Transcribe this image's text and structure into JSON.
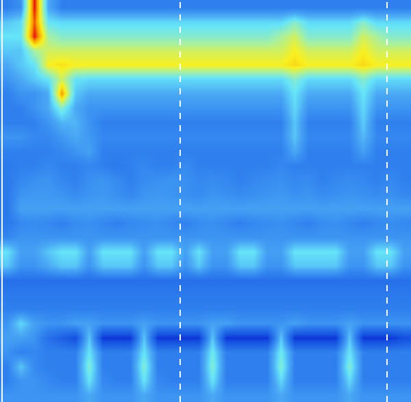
{
  "chart_data": {
    "type": "heatmap",
    "x": [
      0,
      1,
      2,
      3,
      4,
      5,
      6,
      7,
      8,
      9,
      10,
      11,
      12,
      13,
      14,
      15,
      16,
      17,
      18,
      19,
      20,
      21,
      22,
      23,
      24,
      25,
      26,
      27,
      28,
      29
    ],
    "y": [
      0,
      1,
      2,
      3,
      4,
      5,
      6,
      7,
      8,
      9,
      10,
      11,
      12,
      13,
      14,
      15,
      16,
      17,
      18,
      19,
      20,
      21,
      22,
      23,
      24,
      25,
      26,
      27
    ],
    "xlim": [
      -0.5,
      29.5
    ],
    "ylim": [
      27.5,
      -0.5
    ],
    "zlim": [
      0,
      10
    ],
    "tick_labels": false,
    "grid": false,
    "vlines": [
      {
        "x": -0.35,
        "line_style": "solid"
      },
      {
        "x": 12.65,
        "line_style": "dashed"
      },
      {
        "x": 27.75,
        "line_style": "dashed"
      }
    ],
    "cells": [
      [
        3,
        3.4,
        9,
        4,
        3,
        3,
        3,
        3,
        3,
        3,
        3,
        3,
        3,
        3,
        3,
        3,
        3,
        3,
        3,
        3,
        3,
        3,
        3,
        3,
        3,
        3,
        3,
        3,
        3,
        3
      ],
      [
        4.5,
        4.8,
        8.5,
        5,
        4.8,
        4.8,
        4.8,
        4.8,
        4.8,
        4.8,
        4.8,
        4.8,
        4.8,
        4.8,
        4.8,
        4.8,
        4.8,
        4.8,
        4.8,
        4.8,
        4.8,
        5.5,
        4.8,
        4.8,
        4.8,
        4.8,
        5.5,
        4.8,
        4.8,
        4.8
      ],
      [
        5,
        5,
        9,
        6,
        5.5,
        5.5,
        5.5,
        5.5,
        5.5,
        5.5,
        5.5,
        5.5,
        5.5,
        5.5,
        5.5,
        5.5,
        5.5,
        5.5,
        5.5,
        5.5,
        6,
        6.5,
        5.5,
        5.5,
        5.5,
        5.5,
        6.5,
        6,
        5.5,
        5.5
      ],
      [
        4.5,
        4.5,
        6,
        6.5,
        6.5,
        6.5,
        6.5,
        6.5,
        6.5,
        6.5,
        6.5,
        6.5,
        6.5,
        6.5,
        6.5,
        6.5,
        6.5,
        6.5,
        6.5,
        6.5,
        6.5,
        7,
        6.5,
        6.5,
        6.5,
        6.5,
        7,
        6.5,
        6.5,
        6.5
      ],
      [
        4,
        4.5,
        5,
        7,
        7.2,
        7,
        7,
        7,
        7,
        7,
        7,
        7,
        7,
        7,
        7,
        7,
        7,
        7,
        7,
        7,
        7,
        7.3,
        7,
        7,
        7,
        7,
        7.3,
        7,
        7,
        7
      ],
      [
        3.5,
        4,
        4.5,
        5,
        6.5,
        5,
        4.8,
        4.8,
        4.8,
        4.8,
        4.8,
        4.8,
        4.8,
        4.8,
        4.8,
        4.8,
        4.8,
        4.8,
        4.8,
        4.8,
        4.8,
        5.5,
        4.8,
        4.8,
        4.8,
        4.8,
        5.5,
        4.8,
        4.8,
        4.8
      ],
      [
        3,
        3.5,
        3.5,
        4,
        8,
        4.5,
        4,
        4,
        4,
        4,
        4,
        4,
        4,
        4,
        4,
        4,
        4,
        4,
        4,
        4,
        4,
        5,
        4,
        4,
        4,
        4,
        5,
        4,
        4,
        4
      ],
      [
        3,
        3,
        3.5,
        4,
        5.5,
        4,
        3.5,
        3.5,
        3.5,
        3.5,
        3.5,
        3.5,
        3.5,
        3.5,
        3.5,
        3.5,
        3.5,
        3.5,
        3.5,
        3.5,
        3.5,
        4.8,
        3.5,
        3.5,
        3.5,
        3.5,
        4.8,
        3.5,
        3.5,
        3.5
      ],
      [
        3,
        3,
        3,
        3.5,
        4.2,
        4.2,
        3.5,
        3,
        3,
        3,
        3,
        3,
        3,
        3,
        3,
        3,
        3,
        3,
        3,
        3,
        3,
        4.5,
        3,
        3,
        3,
        3,
        4.6,
        3,
        3,
        3
      ],
      [
        3.5,
        3.5,
        3.2,
        3.2,
        3.6,
        4,
        3.6,
        3.2,
        3.2,
        3.2,
        3.2,
        3.2,
        3.2,
        3.2,
        3.2,
        3.2,
        3.2,
        3.2,
        3.2,
        3.2,
        3.2,
        4.5,
        3.2,
        3.2,
        3.2,
        3.2,
        4.3,
        3.2,
        3.2,
        3.2
      ],
      [
        3,
        3,
        3,
        3,
        3.2,
        3.5,
        3.8,
        3,
        3,
        3,
        3,
        3,
        3,
        3,
        3,
        3,
        3,
        3,
        3,
        3,
        3,
        4,
        3,
        3,
        3,
        3,
        3.8,
        3,
        3,
        3
      ],
      [
        2.8,
        3,
        3,
        3.2,
        3,
        3,
        3.2,
        3,
        2.8,
        3,
        3.2,
        3,
        3,
        3.3,
        3,
        3,
        3,
        3,
        3,
        3,
        3.2,
        3,
        3,
        3,
        3,
        3,
        3,
        3,
        3,
        3
      ],
      [
        2.8,
        3.2,
        3.4,
        3.5,
        3.2,
        3,
        3.4,
        3.5,
        3.3,
        3,
        3.3,
        3.4,
        3.5,
        3.4,
        3.2,
        3.3,
        3.2,
        3,
        3.2,
        3.3,
        3.4,
        3.2,
        3.3,
        3,
        3.2,
        3.3,
        3.2,
        3,
        3.2,
        3
      ],
      [
        2.8,
        3.5,
        3.6,
        3.6,
        3.5,
        3.3,
        3.5,
        3.6,
        3.4,
        3.2,
        3.5,
        3.6,
        3.5,
        3.4,
        3.3,
        3.5,
        3.4,
        3.3,
        3.4,
        3.5,
        3.6,
        3.4,
        3.5,
        3.3,
        3.4,
        3.5,
        3.4,
        3.3,
        3.4,
        3.2
      ],
      [
        2.8,
        3.8,
        3.8,
        3.8,
        3.8,
        3.8,
        3.8,
        3.8,
        3.8,
        3.8,
        3.8,
        3.8,
        3.8,
        3.8,
        3.8,
        3.8,
        3.8,
        3.8,
        3.8,
        3.8,
        3.8,
        3.8,
        3.8,
        3.8,
        3.8,
        3.8,
        3.8,
        3.8,
        3.8,
        3.8
      ],
      [
        2.8,
        3.2,
        3.3,
        3.2,
        3,
        3.3,
        3.4,
        3.2,
        3,
        3.2,
        3.3,
        3.4,
        3.2,
        3,
        3.3,
        3.4,
        3.2,
        3,
        3.2,
        3.3,
        3.4,
        3.2,
        3,
        3.3,
        3.4,
        3.2,
        3,
        3.2,
        3.3,
        3.2
      ],
      [
        3.2,
        3.5,
        3.5,
        3.5,
        3.5,
        3.5,
        3.5,
        3.5,
        3.5,
        3.5,
        3.5,
        3.5,
        3.5,
        3.5,
        3.5,
        3.5,
        3.5,
        3.5,
        3.5,
        3.5,
        3.5,
        3.5,
        3.5,
        3.5,
        3.5,
        3.5,
        3.5,
        3.5,
        3.5,
        3.5
      ],
      [
        5,
        3.8,
        3.8,
        4.5,
        5,
        5,
        3.8,
        5,
        5,
        5,
        3.8,
        5,
        5,
        3.8,
        5,
        3.8,
        3.8,
        5,
        5,
        3.8,
        3.8,
        5,
        5,
        5,
        5,
        3.8,
        3.8,
        5,
        5,
        3.8
      ],
      [
        4.5,
        3.5,
        3.5,
        4,
        4.5,
        4.5,
        3.5,
        4.5,
        4.5,
        4.5,
        3.5,
        4.5,
        4.5,
        3.5,
        4.5,
        3.5,
        3.5,
        4.5,
        4.5,
        3.5,
        3.5,
        4.5,
        4.5,
        4.5,
        4.5,
        3.5,
        3.5,
        4.5,
        4.5,
        3.5
      ],
      [
        2.5,
        2.5,
        2.5,
        2.5,
        2.5,
        2.5,
        2.5,
        2.5,
        2.5,
        2.5,
        2.5,
        2.5,
        2.5,
        2.5,
        2.5,
        2.5,
        2.5,
        2.5,
        2.5,
        2.5,
        2.5,
        2.5,
        2.5,
        2.5,
        2.5,
        2.5,
        2.5,
        2.5,
        2.5,
        2.5
      ],
      [
        2.8,
        2.8,
        2.8,
        2.8,
        2.8,
        2.8,
        2.8,
        2.8,
        2.8,
        2.8,
        2.8,
        2.8,
        2.8,
        2.8,
        2.8,
        2.8,
        2.8,
        2.8,
        2.8,
        2.8,
        2.8,
        2.8,
        2.8,
        2.8,
        2.8,
        2.8,
        2.8,
        2.8,
        2.8,
        2.8
      ],
      [
        3,
        3,
        3,
        3,
        3,
        3,
        3,
        3,
        3,
        3,
        3,
        3,
        3,
        3,
        3,
        3,
        3,
        3,
        3,
        3,
        3,
        3,
        3,
        3,
        3,
        3,
        3,
        3,
        3,
        3
      ],
      [
        3.5,
        4.8,
        3.8,
        3.5,
        3.5,
        3.8,
        3.8,
        3.5,
        3.5,
        3.5,
        3.8,
        3.5,
        3.5,
        3.5,
        3.5,
        3.8,
        3.8,
        3.5,
        3.5,
        3.5,
        3.5,
        3.8,
        3.5,
        3.5,
        3.5,
        3.8,
        3.5,
        3.5,
        3.5,
        3.5
      ],
      [
        3.8,
        3.8,
        3.5,
        2.5,
        2,
        1.5,
        4.5,
        1,
        1,
        1,
        4.5,
        1,
        1,
        1,
        1,
        4.5,
        1,
        1,
        1,
        1,
        4.5,
        1,
        1,
        1,
        1,
        4.5,
        1,
        1,
        1,
        1.5
      ],
      [
        3.5,
        3,
        3.2,
        3,
        3,
        3,
        5,
        3,
        3,
        3,
        5,
        3,
        3,
        3,
        3,
        5.2,
        3,
        3,
        3,
        3,
        5.2,
        3,
        3,
        3,
        3,
        5,
        3,
        3,
        3,
        3
      ],
      [
        3,
        4.5,
        3.2,
        3,
        3,
        3,
        5.5,
        3,
        3,
        3,
        5.5,
        3,
        3,
        3,
        3,
        5.5,
        3,
        3,
        3,
        3,
        5.5,
        3,
        3,
        3,
        3,
        5.5,
        3,
        3,
        3,
        3
      ],
      [
        3,
        3.5,
        3.5,
        3.2,
        3,
        3,
        5,
        3.2,
        3,
        3,
        5,
        3.2,
        3,
        3,
        3,
        5,
        3,
        3,
        3,
        3,
        4.8,
        3,
        3,
        3,
        3,
        4.8,
        3,
        3,
        3,
        3
      ],
      [
        3.5,
        3.5,
        3.5,
        3.5,
        3.5,
        3.5,
        4,
        3.5,
        3.5,
        3.5,
        4,
        3.5,
        3.5,
        3.5,
        3.5,
        4,
        3.5,
        3.5,
        3.5,
        3.5,
        4,
        3.5,
        3.5,
        3.5,
        3.5,
        4,
        3.5,
        3.5,
        3.5,
        3.5
      ]
    ]
  }
}
